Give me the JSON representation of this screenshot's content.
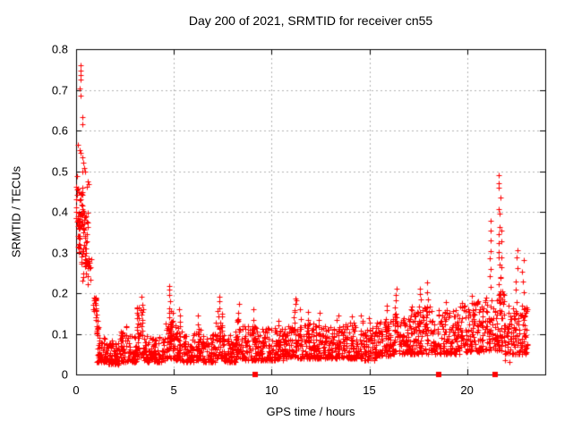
{
  "chart_data": {
    "type": "scatter",
    "title": "Day 200 of 2021, SRMTID for receiver cn55",
    "xlabel": "GPS time / hours",
    "ylabel": "SRMTID / TECUs",
    "xlim": [
      0,
      24
    ],
    "ylim": [
      0,
      0.8
    ],
    "xticks": [
      0,
      5,
      10,
      15,
      20
    ],
    "xtick_labels": [
      "0",
      "5",
      "10",
      "15",
      "20"
    ],
    "yticks": [
      0,
      0.1,
      0.2,
      0.3,
      0.4,
      0.5,
      0.6,
      0.7,
      0.8
    ],
    "ytick_labels": [
      "0",
      "0.1",
      "0.2",
      "0.3",
      "0.4",
      "0.5",
      "0.6",
      "0.7",
      "0.8"
    ],
    "grid": true,
    "grid_color": "#b4b4b4",
    "border_color": "#000000",
    "series": [
      {
        "name": "srmtid",
        "marker": "plus",
        "color": "#ff0000",
        "explicit_points": [
          [
            0.23,
            0.76
          ],
          [
            0.23,
            0.747
          ],
          [
            0.23,
            0.736
          ],
          [
            0.23,
            0.725
          ],
          [
            0.18,
            0.703
          ],
          [
            0.23,
            0.685
          ],
          [
            0.3,
            0.632
          ],
          [
            0.3,
            0.615
          ],
          [
            0.1,
            0.565
          ],
          [
            0.18,
            0.552
          ],
          [
            0.25,
            0.545
          ],
          [
            0.32,
            0.535
          ],
          [
            0.38,
            0.52
          ],
          [
            0.42,
            0.508
          ],
          [
            0.3,
            0.5
          ],
          [
            0.48,
            0.498
          ],
          [
            0.05,
            0.487
          ],
          [
            0.02,
            0.462
          ],
          [
            0.6,
            0.475
          ],
          [
            0.63,
            0.468
          ],
          [
            0.55,
            0.462
          ],
          [
            0.08,
            0.458
          ],
          [
            0.0,
            0.43
          ],
          [
            0.0,
            0.4
          ],
          [
            0.0,
            0.385
          ],
          [
            1.02,
            0.135
          ],
          [
            1.08,
            0.112
          ],
          [
            21.95,
            0.035
          ],
          [
            22.15,
            0.03
          ],
          [
            23.05,
            0.155
          ]
        ],
        "bands": [
          {
            "x0": 0.0,
            "x1": 0.35,
            "n": 30,
            "y0": 0.355,
            "y1": 0.46,
            "dist": "uniform"
          },
          {
            "x0": 0.05,
            "x1": 0.6,
            "n": 55,
            "y0": 0.27,
            "y1": 0.4,
            "dist": "uniform"
          },
          {
            "x0": 0.3,
            "x1": 0.8,
            "n": 25,
            "y0": 0.22,
            "y1": 0.3,
            "dist": "uniform"
          },
          {
            "x0": 0.85,
            "x1": 1.05,
            "n": 20,
            "y0": 0.155,
            "y1": 0.19,
            "dist": "uniform"
          },
          {
            "x0": 1.0,
            "x1": 1.15,
            "n": 12,
            "y0": 0.095,
            "y1": 0.15,
            "dist": "uniform"
          },
          {
            "x0": 1.05,
            "x1": 1.6,
            "n": 60,
            "y0": 0.03,
            "y1": 0.09,
            "dist": "bottom"
          },
          {
            "x0": 1.6,
            "x1": 2.2,
            "n": 65,
            "y0": 0.025,
            "y1": 0.085,
            "dist": "bottom"
          },
          {
            "x0": 2.2,
            "x1": 2.6,
            "n": 45,
            "y0": 0.03,
            "y1": 0.12,
            "dist": "bottom"
          },
          {
            "x0": 2.6,
            "x1": 3.1,
            "n": 50,
            "y0": 0.03,
            "y1": 0.1,
            "dist": "bottom"
          },
          {
            "x0": 3.1,
            "x1": 3.45,
            "n": 40,
            "y0": 0.04,
            "y1": 0.165,
            "dist": "bottom"
          },
          {
            "x0": 3.45,
            "x1": 4.55,
            "n": 110,
            "y0": 0.03,
            "y1": 0.095,
            "dist": "bottom"
          },
          {
            "x0": 4.55,
            "x1": 5.0,
            "n": 50,
            "y0": 0.04,
            "y1": 0.13,
            "dist": "bottom"
          },
          {
            "x0": 5.0,
            "x1": 5.45,
            "n": 45,
            "y0": 0.035,
            "y1": 0.12,
            "dist": "bottom"
          },
          {
            "x0": 5.45,
            "x1": 6.0,
            "n": 55,
            "y0": 0.03,
            "y1": 0.1,
            "dist": "bottom"
          },
          {
            "x0": 6.0,
            "x1": 6.5,
            "n": 50,
            "y0": 0.035,
            "y1": 0.12,
            "dist": "bottom"
          },
          {
            "x0": 6.5,
            "x1": 7.1,
            "n": 60,
            "y0": 0.03,
            "y1": 0.1,
            "dist": "bottom"
          },
          {
            "x0": 7.1,
            "x1": 7.55,
            "n": 45,
            "y0": 0.04,
            "y1": 0.13,
            "dist": "bottom"
          },
          {
            "x0": 7.55,
            "x1": 8.15,
            "n": 60,
            "y0": 0.03,
            "y1": 0.1,
            "dist": "bottom"
          },
          {
            "x0": 8.15,
            "x1": 8.55,
            "n": 40,
            "y0": 0.04,
            "y1": 0.135,
            "dist": "bottom"
          },
          {
            "x0": 8.55,
            "x1": 9.4,
            "n": 85,
            "y0": 0.035,
            "y1": 0.12,
            "dist": "bottom"
          },
          {
            "x0": 9.4,
            "x1": 10.6,
            "n": 120,
            "y0": 0.035,
            "y1": 0.115,
            "dist": "bottom"
          },
          {
            "x0": 10.6,
            "x1": 11.5,
            "n": 90,
            "y0": 0.04,
            "y1": 0.12,
            "dist": "bottom"
          },
          {
            "x0": 11.5,
            "x1": 12.6,
            "n": 110,
            "y0": 0.04,
            "y1": 0.125,
            "dist": "bottom"
          },
          {
            "x0": 12.6,
            "x1": 13.6,
            "n": 100,
            "y0": 0.04,
            "y1": 0.12,
            "dist": "bottom"
          },
          {
            "x0": 13.6,
            "x1": 14.7,
            "n": 110,
            "y0": 0.04,
            "y1": 0.13,
            "dist": "bottom"
          },
          {
            "x0": 14.7,
            "x1": 15.4,
            "n": 70,
            "y0": 0.035,
            "y1": 0.12,
            "dist": "bottom"
          },
          {
            "x0": 15.4,
            "x1": 16.2,
            "n": 80,
            "y0": 0.045,
            "y1": 0.13,
            "dist": "bottom"
          },
          {
            "x0": 16.2,
            "x1": 17.1,
            "n": 90,
            "y0": 0.05,
            "y1": 0.15,
            "dist": "bottom"
          },
          {
            "x0": 17.1,
            "x1": 18.3,
            "n": 120,
            "y0": 0.05,
            "y1": 0.17,
            "dist": "bottom"
          },
          {
            "x0": 18.3,
            "x1": 19.6,
            "n": 130,
            "y0": 0.05,
            "y1": 0.16,
            "dist": "bottom"
          },
          {
            "x0": 19.6,
            "x1": 20.9,
            "n": 130,
            "y0": 0.055,
            "y1": 0.18,
            "dist": "bottom"
          },
          {
            "x0": 20.9,
            "x1": 21.9,
            "n": 100,
            "y0": 0.06,
            "y1": 0.2,
            "dist": "bottom"
          },
          {
            "x0": 21.9,
            "x1": 23.1,
            "n": 120,
            "y0": 0.05,
            "y1": 0.17,
            "dist": "bottom"
          }
        ],
        "spikes": [
          {
            "x": 3.35,
            "n": 5,
            "y0": 0.1,
            "y1": 0.195
          },
          {
            "x": 4.78,
            "n": 12,
            "y0": 0.08,
            "y1": 0.215
          },
          {
            "x": 4.92,
            "n": 8,
            "y0": 0.07,
            "y1": 0.16
          },
          {
            "x": 5.3,
            "n": 6,
            "y0": 0.08,
            "y1": 0.165
          },
          {
            "x": 6.25,
            "n": 5,
            "y0": 0.08,
            "y1": 0.14
          },
          {
            "x": 7.3,
            "n": 9,
            "y0": 0.08,
            "y1": 0.195
          },
          {
            "x": 7.45,
            "n": 6,
            "y0": 0.07,
            "y1": 0.155
          },
          {
            "x": 8.3,
            "n": 7,
            "y0": 0.08,
            "y1": 0.17
          },
          {
            "x": 9.1,
            "n": 6,
            "y0": 0.07,
            "y1": 0.155
          },
          {
            "x": 10.4,
            "n": 5,
            "y0": 0.07,
            "y1": 0.135
          },
          {
            "x": 11.2,
            "n": 7,
            "y0": 0.13,
            "y1": 0.19
          },
          {
            "x": 11.45,
            "n": 5,
            "y0": 0.09,
            "y1": 0.155
          },
          {
            "x": 11.9,
            "n": 5,
            "y0": 0.08,
            "y1": 0.15
          },
          {
            "x": 12.45,
            "n": 5,
            "y0": 0.08,
            "y1": 0.148
          },
          {
            "x": 13.4,
            "n": 5,
            "y0": 0.08,
            "y1": 0.15
          },
          {
            "x": 14.15,
            "n": 5,
            "y0": 0.08,
            "y1": 0.14
          },
          {
            "x": 14.6,
            "n": 6,
            "y0": 0.08,
            "y1": 0.15
          },
          {
            "x": 15.05,
            "n": 5,
            "y0": 0.08,
            "y1": 0.145
          },
          {
            "x": 15.9,
            "n": 6,
            "y0": 0.09,
            "y1": 0.17
          },
          {
            "x": 16.35,
            "n": 8,
            "y0": 0.1,
            "y1": 0.21
          },
          {
            "x": 17.6,
            "n": 7,
            "y0": 0.12,
            "y1": 0.215
          },
          {
            "x": 17.95,
            "n": 7,
            "y0": 0.12,
            "y1": 0.22
          },
          {
            "x": 18.9,
            "n": 5,
            "y0": 0.1,
            "y1": 0.18
          },
          {
            "x": 20.3,
            "n": 6,
            "y0": 0.1,
            "y1": 0.19
          },
          {
            "x": 21.2,
            "n": 11,
            "y0": 0.14,
            "y1": 0.38
          },
          {
            "x": 21.65,
            "n": 16,
            "y0": 0.18,
            "y1": 0.495
          },
          {
            "x": 21.78,
            "n": 8,
            "y0": 0.15,
            "y1": 0.35
          },
          {
            "x": 22.55,
            "n": 9,
            "y0": 0.1,
            "y1": 0.31
          },
          {
            "x": 22.85,
            "n": 7,
            "y0": 0.12,
            "y1": 0.28
          }
        ]
      },
      {
        "name": "event-markers",
        "marker": "filled-square",
        "color": "#ff0000",
        "points": [
          [
            9.15,
            0
          ],
          [
            18.55,
            0
          ],
          [
            21.45,
            0
          ]
        ]
      }
    ]
  }
}
